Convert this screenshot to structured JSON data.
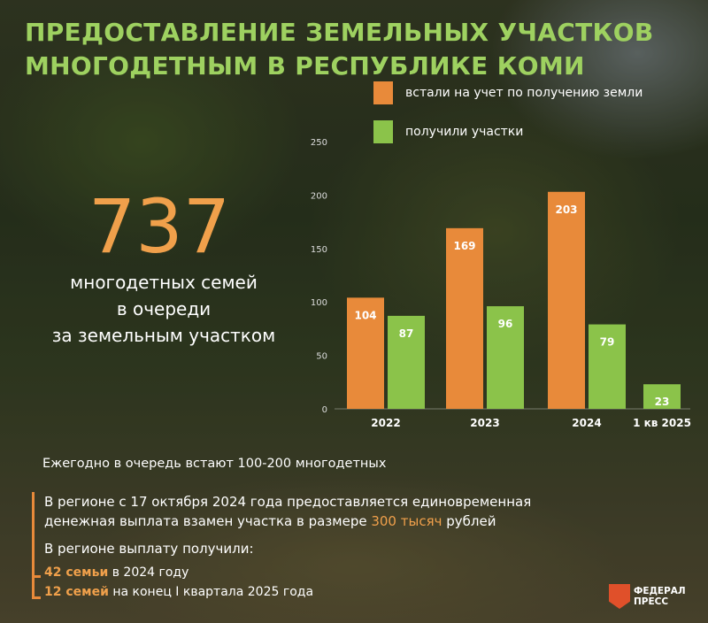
{
  "title": {
    "line1": "ПРЕДОСТАВЛЕНИЕ ЗЕМЕЛЬНЫХ УЧАСТКОВ",
    "line2": "МНОГОДЕТНЫМ В РЕСПУБЛИКЕ КОМИ"
  },
  "highlight": {
    "number": "737",
    "caption_line1": "многодетных семей",
    "caption_line2": "в очереди",
    "caption_line3": "за земельным участком"
  },
  "colors": {
    "title": "#9ed160",
    "orange": "#e88a3a",
    "green": "#8bc34a",
    "highlight": "#f0a04b"
  },
  "chart_data": {
    "type": "bar",
    "categories": [
      "2022",
      "2023",
      "2024",
      "1 кв 2025"
    ],
    "series": [
      {
        "name": "встали на учет по получению земли",
        "color": "#e88a3a",
        "values": [
          104,
          169,
          203,
          null
        ]
      },
      {
        "name": "получили участки",
        "color": "#8bc34a",
        "values": [
          87,
          96,
          79,
          23
        ]
      }
    ],
    "yticks": [
      0,
      50,
      100,
      150,
      200,
      250
    ],
    "ylim": [
      0,
      250
    ],
    "legend_position": "top",
    "grid": false
  },
  "notes": {
    "yearly": "Ежегодно в очередь встают 100-200 многодетных",
    "para_line1": "В регионе с 17 октября 2024 года предоставляется единовременная",
    "para_line2_a": "денежная выплата взамен участка в размере ",
    "para_line2_hl": "300 тысяч",
    "para_line2_b": " рублей",
    "subhead": "В регионе выплату получили:",
    "row1_hl": "42 семьи",
    "row1_text": " в 2024 году",
    "row2_hl": "12 семей",
    "row2_text": " на конец I квартала 2025 года"
  },
  "logo": {
    "line1": "ФЕДЕРАЛ",
    "line2": "ПРЕСС"
  }
}
